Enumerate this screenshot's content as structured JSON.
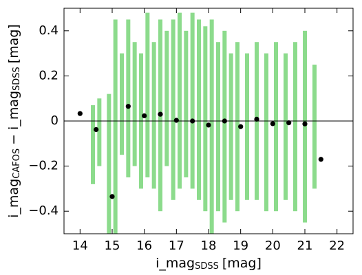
{
  "chart_data": {
    "type": "scatter",
    "xlabel": {
      "main": "i_mag",
      "sub": "SDSS",
      "unit": "[mag]"
    },
    "ylabel": {
      "main": "i_mag",
      "sub": "CAFOS",
      "mid": "− i_mag",
      "sub2": "SDSS",
      "unit": "[mag]"
    },
    "xlim": [
      13.5,
      22.5
    ],
    "ylim": [
      -0.5,
      0.5
    ],
    "xticks": [
      14,
      15,
      16,
      17,
      18,
      19,
      20,
      21,
      22
    ],
    "yticks": [
      {
        "value": -0.4,
        "label": "−0.4"
      },
      {
        "value": -0.2,
        "label": "−0.2"
      },
      0,
      0.2,
      0.4
    ],
    "hline": 0,
    "series": [
      {
        "color": "#00b000",
        "x": [
          14.4,
          14.6,
          14.9,
          15.1,
          15.3,
          15.5,
          15.7,
          15.9,
          16.1,
          16.3,
          16.5,
          16.7,
          16.9,
          17.1,
          17.3,
          17.5,
          17.7,
          17.9,
          18.1,
          18.3,
          18.5,
          18.7,
          18.9,
          19.2,
          19.5,
          19.8,
          20.1,
          20.4,
          20.7,
          21.0,
          21.3
        ],
        "low": [
          -0.28,
          -0.2,
          -0.5,
          -0.5,
          -0.15,
          -0.25,
          -0.2,
          -0.3,
          -0.25,
          -0.3,
          -0.4,
          -0.2,
          -0.35,
          -0.3,
          -0.25,
          -0.3,
          -0.35,
          -0.4,
          -0.5,
          -0.4,
          -0.45,
          -0.35,
          -0.4,
          -0.35,
          -0.35,
          -0.4,
          -0.4,
          -0.35,
          -0.4,
          -0.45,
          -0.3
        ],
        "high": [
          0.07,
          0.1,
          0.12,
          0.45,
          0.3,
          0.45,
          0.35,
          0.3,
          0.48,
          0.35,
          0.45,
          0.4,
          0.45,
          0.48,
          0.4,
          0.48,
          0.45,
          0.42,
          0.45,
          0.35,
          0.4,
          0.3,
          0.35,
          0.3,
          0.35,
          0.3,
          0.35,
          0.3,
          0.35,
          0.4,
          0.25
        ]
      },
      {
        "color": "#000000",
        "x": [
          14,
          14.5,
          15,
          15.5,
          16,
          16.5,
          17,
          17.5,
          18,
          18.5,
          19,
          19.5,
          20,
          20.5,
          21,
          21.5
        ],
        "values": [
          0.033,
          -0.038,
          -0.335,
          0.065,
          0.023,
          0.03,
          0.003,
          0.0,
          -0.018,
          0.0,
          -0.025,
          0.008,
          -0.012,
          -0.008,
          -0.013,
          -0.17
        ]
      }
    ]
  }
}
